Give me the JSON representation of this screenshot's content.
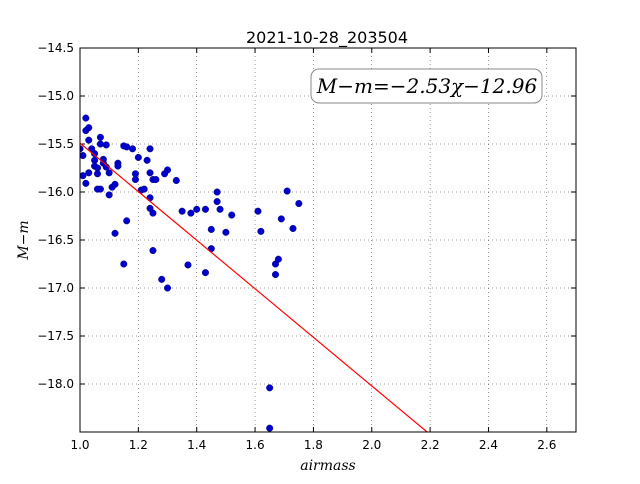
{
  "chart_data": {
    "type": "scatter",
    "title": "2021-10-28_203504",
    "xlabel": "airmass",
    "ylabel": "M−m",
    "xlim": [
      1.0,
      2.7
    ],
    "ylim": [
      -18.5,
      -14.5
    ],
    "y_inverted": true,
    "grid": true,
    "xticks": [
      "1.0",
      "1.2",
      "1.4",
      "1.6",
      "1.8",
      "2.0",
      "2.2",
      "2.4",
      "2.6"
    ],
    "yticks": [
      "−14.5",
      "−15.0",
      "−15.5",
      "−16.0",
      "−16.5",
      "−17.0",
      "−17.5",
      "−18.0"
    ],
    "annotation": "M−m=−2.53χ−12.96",
    "marker_color": "#0000cc",
    "line_color": "#ff0000",
    "fit": {
      "slope": -2.53,
      "intercept": -12.96
    },
    "series": [
      {
        "points": [
          [
            1.0,
            -15.55
          ],
          [
            1.01,
            -15.62
          ],
          [
            1.01,
            -15.83
          ],
          [
            1.02,
            -15.91
          ],
          [
            1.02,
            -15.23
          ],
          [
            1.02,
            -15.36
          ],
          [
            1.03,
            -15.33
          ],
          [
            1.03,
            -15.46
          ],
          [
            1.03,
            -15.8
          ],
          [
            1.04,
            -15.55
          ],
          [
            1.05,
            -15.6
          ],
          [
            1.05,
            -15.67
          ],
          [
            1.05,
            -15.73
          ],
          [
            1.06,
            -15.75
          ],
          [
            1.06,
            -15.81
          ],
          [
            1.06,
            -15.97
          ],
          [
            1.07,
            -15.43
          ],
          [
            1.07,
            -15.5
          ],
          [
            1.07,
            -15.97
          ],
          [
            1.08,
            -15.66
          ],
          [
            1.08,
            -15.7
          ],
          [
            1.09,
            -15.51
          ],
          [
            1.09,
            -15.74
          ],
          [
            1.1,
            -15.8
          ],
          [
            1.1,
            -16.03
          ],
          [
            1.11,
            -15.95
          ],
          [
            1.12,
            -15.92
          ],
          [
            1.12,
            -16.43
          ],
          [
            1.13,
            -15.7
          ],
          [
            1.13,
            -15.73
          ],
          [
            1.15,
            -15.52
          ],
          [
            1.15,
            -16.75
          ],
          [
            1.16,
            -15.53
          ],
          [
            1.16,
            -16.3
          ],
          [
            1.18,
            -15.55
          ],
          [
            1.19,
            -15.81
          ],
          [
            1.19,
            -15.87
          ],
          [
            1.2,
            -15.64
          ],
          [
            1.21,
            -15.98
          ],
          [
            1.22,
            -15.97
          ],
          [
            1.23,
            -15.67
          ],
          [
            1.24,
            -15.55
          ],
          [
            1.24,
            -15.8
          ],
          [
            1.24,
            -16.06
          ],
          [
            1.24,
            -16.17
          ],
          [
            1.25,
            -16.22
          ],
          [
            1.25,
            -15.87
          ],
          [
            1.25,
            -16.61
          ],
          [
            1.26,
            -15.87
          ],
          [
            1.28,
            -16.91
          ],
          [
            1.29,
            -15.81
          ],
          [
            1.3,
            -15.77
          ],
          [
            1.3,
            -17.0
          ],
          [
            1.33,
            -15.88
          ],
          [
            1.35,
            -16.2
          ],
          [
            1.37,
            -16.76
          ],
          [
            1.38,
            -16.22
          ],
          [
            1.4,
            -16.18
          ],
          [
            1.43,
            -16.18
          ],
          [
            1.43,
            -16.84
          ],
          [
            1.45,
            -16.39
          ],
          [
            1.45,
            -16.59
          ],
          [
            1.47,
            -16.0
          ],
          [
            1.47,
            -16.1
          ],
          [
            1.48,
            -16.18
          ],
          [
            1.5,
            -16.42
          ],
          [
            1.52,
            -16.24
          ],
          [
            1.61,
            -16.2
          ],
          [
            1.62,
            -16.41
          ],
          [
            1.65,
            -18.04
          ],
          [
            1.65,
            -18.46
          ],
          [
            1.67,
            -16.75
          ],
          [
            1.67,
            -16.86
          ],
          [
            1.68,
            -16.7
          ],
          [
            1.69,
            -16.28
          ],
          [
            1.71,
            -15.99
          ],
          [
            1.73,
            -16.38
          ],
          [
            1.75,
            -16.12
          ]
        ]
      }
    ]
  }
}
